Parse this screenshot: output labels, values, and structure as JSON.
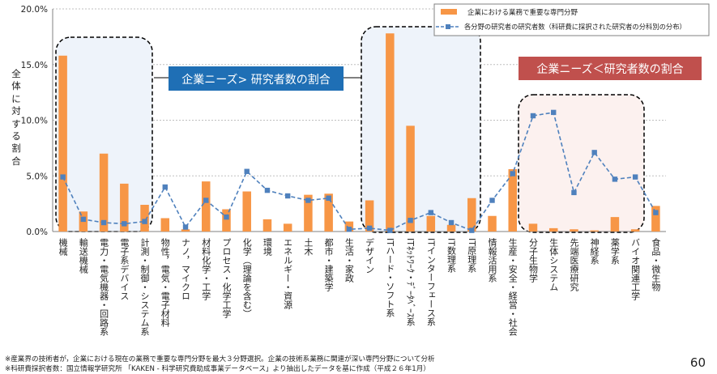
{
  "chart_data": {
    "type": "bar+line",
    "ylabel": "全体に対する割合",
    "ylim": [
      0,
      20
    ],
    "yticks": [
      "0.0%",
      "5.0%",
      "10.0%",
      "15.0%",
      "20.0%"
    ],
    "grid": true,
    "legend_position": "top-right",
    "categories": [
      "機械",
      "輸送機械",
      "電力・電気機器・回路系",
      "電子系デバイス",
      "計測・制御・システム系",
      "物性，電気・電子材料",
      "ナノ，マイクロ",
      "材料化学・工学",
      "プロセス・化学工学",
      "化学（理論を含む）",
      "環境",
      "エネルギー・資源",
      "土木",
      "都市・建築学",
      "生活・家政",
      "デザイン",
      "ITハード・ソフト系",
      "ITﾈｯﾄﾜｰｸ・ﾃﾞｰﾀﾍﾞｰｽ系",
      "ITインターフェース系",
      "IT数理系",
      "IT原理系",
      "情報活用系",
      "生産・安全・経営・社会",
      "分子生物学",
      "生体システム",
      "先端医療研究",
      "神経系",
      "薬学系",
      "バイオ関連工学",
      "食品・微生物"
    ],
    "series": [
      {
        "name": "企業における業務で重要な専門分野",
        "kind": "bar",
        "color": "#F79646",
        "values": [
          15.8,
          1.8,
          7.0,
          4.3,
          2.4,
          1.2,
          0.2,
          4.5,
          2.0,
          3.6,
          1.1,
          0.7,
          3.3,
          3.4,
          0.9,
          2.8,
          17.8,
          9.5,
          1.4,
          0.6,
          3.0,
          1.4,
          5.6,
          0.7,
          0.3,
          0.2,
          0.1,
          1.3,
          0.2,
          2.3
        ]
      },
      {
        "name": "各分野の研究者の研究者数（科研費に採択された研究者の分科別の分布）",
        "kind": "line",
        "color": "#4F81BD",
        "values": [
          4.9,
          1.1,
          0.8,
          0.7,
          0.9,
          4.0,
          0.4,
          2.8,
          1.3,
          5.4,
          3.7,
          3.2,
          2.8,
          3.0,
          0.2,
          0.3,
          0.1,
          1.0,
          1.7,
          0.8,
          0.1,
          2.8,
          5.2,
          10.4,
          10.7,
          3.5,
          7.1,
          4.7,
          4.9,
          1.7
        ]
      }
    ],
    "annotations": [
      {
        "text": "企業ニーズ> 研究者数の割合",
        "box_color": "#1F6FB5"
      },
      {
        "text": "企業ニーズ＜研究者数の割合",
        "box_color": "#C0504D"
      }
    ]
  },
  "notes": [
    "※産業界の技術者が，企業における現在の業務で重要な専門分野を最大３分野選択。企業の技術系業務に関連が深い専門分野について分析",
    "※科研費採択者数：国立情報学研究所 「KAKEN - 科学研究費助成事業データベース」より抽出したデータを基に作成（平成２６年1月）"
  ],
  "page_number": "60"
}
